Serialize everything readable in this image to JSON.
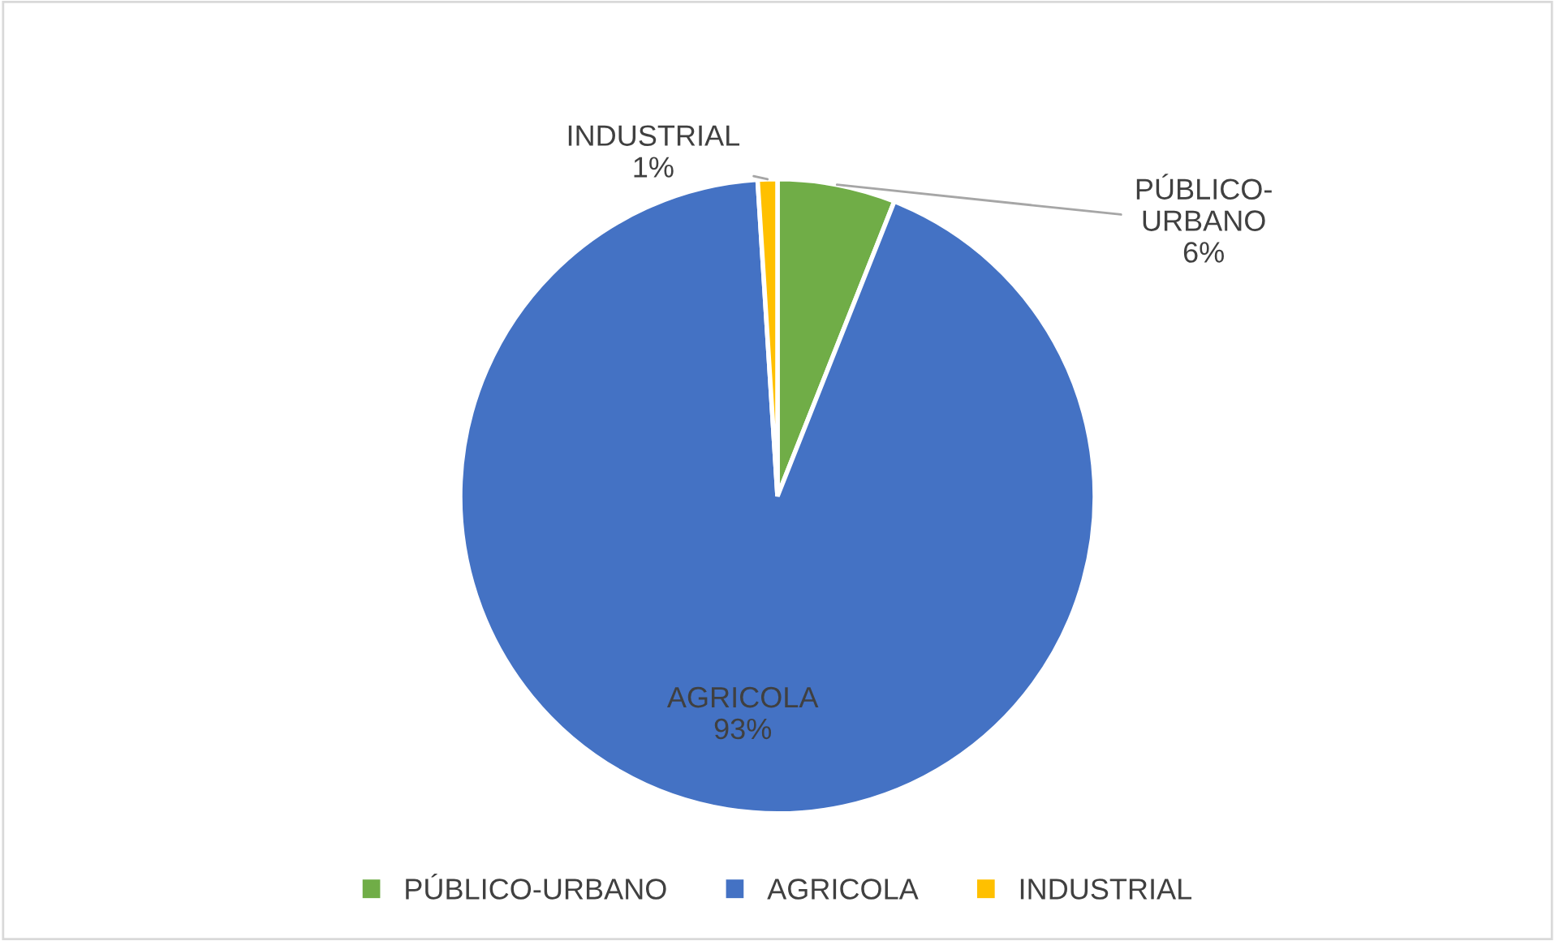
{
  "chart_data": {
    "type": "pie",
    "categories": [
      "PÚBLICO-URBANO",
      "AGRICOLA",
      "INDUSTRIAL"
    ],
    "values": [
      6,
      93,
      1
    ],
    "colors": [
      "#70ad47",
      "#4472c4",
      "#ffc000"
    ],
    "value_labels": [
      "6%",
      "93%",
      "1%"
    ],
    "legend": "bottom"
  }
}
